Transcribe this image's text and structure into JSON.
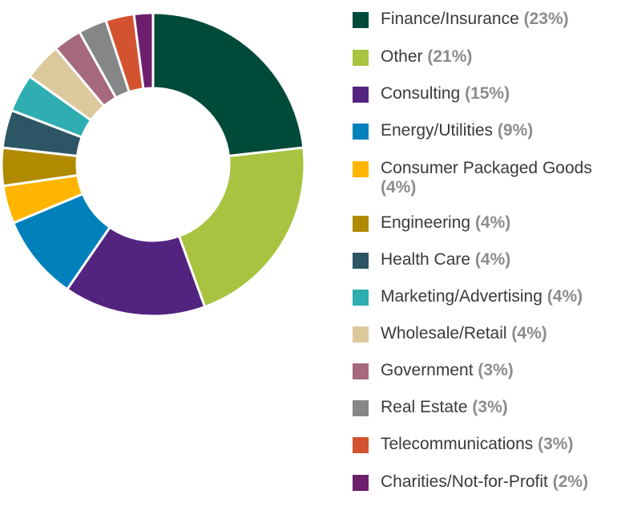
{
  "chart_data": {
    "type": "pie",
    "donut": true,
    "slices": [
      {
        "label": "Finance/Insurance",
        "pct_label": "(23%)",
        "value": 23,
        "color": "#004a3a"
      },
      {
        "label": "Other",
        "pct_label": "(21%)",
        "value": 21,
        "color": "#a9c23f"
      },
      {
        "label": "Consulting",
        "pct_label": "(15%)",
        "value": 15,
        "color": "#52247f"
      },
      {
        "label": "Energy/Utilities",
        "pct_label": "(9%)",
        "value": 9,
        "color": "#0081bc"
      },
      {
        "label": "Consumer Packaged Goods",
        "pct_label": "(4%)",
        "value": 4,
        "color": "#ffb500"
      },
      {
        "label": "Engineering",
        "pct_label": "(4%)",
        "value": 4,
        "color": "#b08a00"
      },
      {
        "label": "Health Care",
        "pct_label": "(4%)",
        "value": 4,
        "color": "#2c5566"
      },
      {
        "label": "Marketing/Advertising",
        "pct_label": "(4%)",
        "value": 4,
        "color": "#2eaeb1"
      },
      {
        "label": "Wholesale/Retail",
        "pct_label": "(4%)",
        "value": 4,
        "color": "#dcc99b"
      },
      {
        "label": "Government",
        "pct_label": "(3%)",
        "value": 3,
        "color": "#a6687c"
      },
      {
        "label": "Real Estate",
        "pct_label": "(3%)",
        "value": 3,
        "color": "#848688"
      },
      {
        "label": "Telecommunications",
        "pct_label": "(3%)",
        "value": 3,
        "color": "#d35330"
      },
      {
        "label": "Charities/Not-for-Profit",
        "pct_label": "(2%)",
        "value": 2,
        "color": "#6c1f6c"
      }
    ],
    "legend": "right"
  }
}
